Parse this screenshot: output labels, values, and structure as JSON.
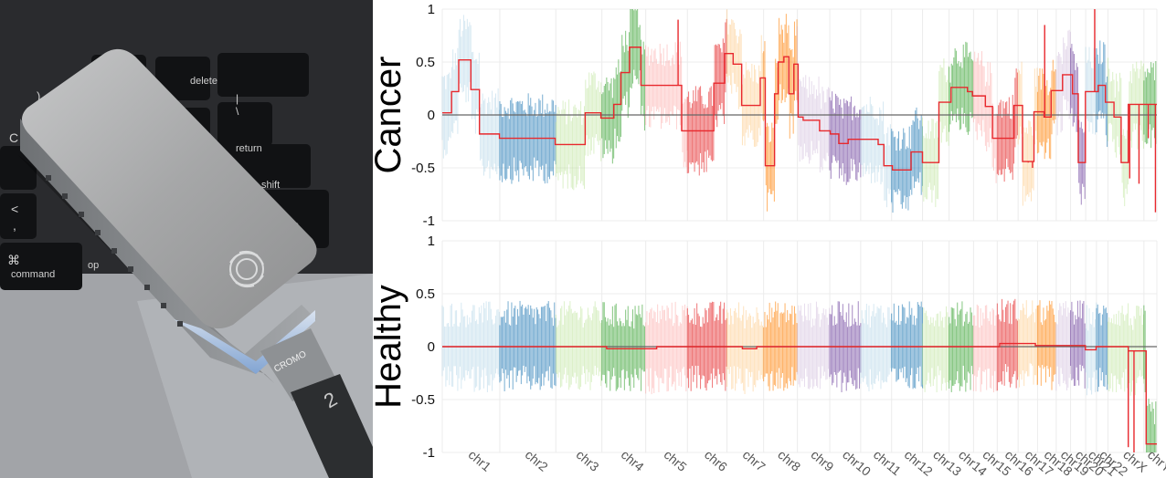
{
  "photo": {
    "keys": {
      "delete": "delete",
      "return": "return",
      "shift": "shift",
      "command": "command",
      "cmd_symbol": "⌘",
      "opt": "op",
      "plus": "+",
      "equals": "=",
      "brace_top": "}",
      "brace_bottom": "]",
      "pipe_top": "|",
      "pipe_bottom": "\\",
      "paren": ")",
      "lt": "<",
      "comma": ",",
      "arrow": "▶",
      "c_key": "C"
    },
    "cable_brand": "CROMO",
    "cable_number": "2",
    "colors": {
      "device": "#a8a9aa",
      "laptop": "#9a9ca0",
      "cable": "#2c2e30"
    }
  },
  "chart_data": [
    {
      "type": "line",
      "panel_label": "Cancer",
      "ylim": [
        -1,
        1
      ],
      "yticks": [
        -1,
        -0.5,
        0,
        0.5,
        1
      ],
      "ytick_labels": [
        "-1",
        "-0.5",
        "0",
        "0.5",
        "1"
      ],
      "categories": [
        "chr1",
        "chr2",
        "chr3",
        "chr4",
        "chr5",
        "chr6",
        "chr7",
        "chr8",
        "chr9",
        "chr10",
        "chr11",
        "chr12",
        "chr13",
        "chr14",
        "chr15",
        "chr16",
        "chr17",
        "chr18",
        "chr19",
        "chr20",
        "chr21",
        "chr22",
        "chrX",
        "chrY"
      ],
      "chromosome_fractions": [
        0.08,
        0.078,
        0.064,
        0.061,
        0.058,
        0.055,
        0.051,
        0.047,
        0.045,
        0.043,
        0.043,
        0.043,
        0.037,
        0.034,
        0.033,
        0.029,
        0.027,
        0.026,
        0.02,
        0.021,
        0.015,
        0.016,
        0.05,
        0.018
      ],
      "noise_amplitude": 0.36,
      "segments": [
        {
          "x": [
            0,
            0.013
          ],
          "y": 0.02
        },
        {
          "x": [
            0.013,
            0.023
          ],
          "y": 0.22
        },
        {
          "x": [
            0.023,
            0.04
          ],
          "y": 0.52
        },
        {
          "x": [
            0.04,
            0.052
          ],
          "y": 0.24
        },
        {
          "x": [
            0.052,
            0.08
          ],
          "y": -0.18
        },
        {
          "x": [
            0.08,
            0.158
          ],
          "y": -0.22
        },
        {
          "x": [
            0.158,
            0.2
          ],
          "y": -0.28
        },
        {
          "x": [
            0.2,
            0.222
          ],
          "y": 0.02
        },
        {
          "x": [
            0.222,
            0.24
          ],
          "y": -0.03
        },
        {
          "x": [
            0.24,
            0.25
          ],
          "y": 0.1
        },
        {
          "x": [
            0.25,
            0.262
          ],
          "y": 0.4
        },
        {
          "x": [
            0.262,
            0.278
          ],
          "y": 0.64
        },
        {
          "x": [
            0.278,
            0.335
          ],
          "y": 0.28
        },
        {
          "x": [
            0.335,
            0.38
          ],
          "y": -0.15
        },
        {
          "x": [
            0.38,
            0.395
          ],
          "y": 0.3
        },
        {
          "x": [
            0.395,
            0.407
          ],
          "y": 0.58
        },
        {
          "x": [
            0.407,
            0.419
          ],
          "y": 0.48
        },
        {
          "x": [
            0.419,
            0.445
          ],
          "y": 0.09
        },
        {
          "x": [
            0.445,
            0.452
          ],
          "y": 0.35
        },
        {
          "x": [
            0.452,
            0.465
          ],
          "y": -0.48
        },
        {
          "x": [
            0.465,
            0.47
          ],
          "y": 0.2
        },
        {
          "x": [
            0.47,
            0.478
          ],
          "y": 0.5
        },
        {
          "x": [
            0.478,
            0.485
          ],
          "y": 0.55
        },
        {
          "x": [
            0.485,
            0.492
          ],
          "y": 0.2
        },
        {
          "x": [
            0.492,
            0.498
          ],
          "y": 0.48
        },
        {
          "x": [
            0.498,
            0.505
          ],
          "y": -0.02
        },
        {
          "x": [
            0.505,
            0.528
          ],
          "y": -0.05
        },
        {
          "x": [
            0.528,
            0.543
          ],
          "y": -0.15
        },
        {
          "x": [
            0.543,
            0.555
          ],
          "y": -0.18
        },
        {
          "x": [
            0.555,
            0.568
          ],
          "y": -0.27
        },
        {
          "x": [
            0.568,
            0.61
          ],
          "y": -0.23
        },
        {
          "x": [
            0.61,
            0.618
          ],
          "y": -0.28
        },
        {
          "x": [
            0.618,
            0.63
          ],
          "y": -0.48
        },
        {
          "x": [
            0.63,
            0.656
          ],
          "y": -0.52
        },
        {
          "x": [
            0.656,
            0.672
          ],
          "y": -0.35
        },
        {
          "x": [
            0.672,
            0.695
          ],
          "y": -0.45
        },
        {
          "x": [
            0.695,
            0.712
          ],
          "y": 0.12
        },
        {
          "x": [
            0.712,
            0.735
          ],
          "y": 0.26
        },
        {
          "x": [
            0.735,
            0.742
          ],
          "y": 0.22
        },
        {
          "x": [
            0.742,
            0.76
          ],
          "y": 0.18
        },
        {
          "x": [
            0.76,
            0.77
          ],
          "y": 0.08
        },
        {
          "x": [
            0.77,
            0.8
          ],
          "y": -0.22
        },
        {
          "x": [
            0.8,
            0.812
          ],
          "y": 0.09
        },
        {
          "x": [
            0.812,
            0.828
          ],
          "y": -0.44
        },
        {
          "x": [
            0.828,
            0.842
          ],
          "y": 0.03
        },
        {
          "x": [
            0.842,
            0.852
          ],
          "y": -0.02
        },
        {
          "x": [
            0.852,
            0.868
          ],
          "y": 0.23
        },
        {
          "x": [
            0.868,
            0.882
          ],
          "y": 0.38
        },
        {
          "x": [
            0.882,
            0.89
          ],
          "y": 0.2
        },
        {
          "x": [
            0.89,
            0.9
          ],
          "y": -0.45
        },
        {
          "x": [
            0.9,
            0.918
          ],
          "y": 0.22
        },
        {
          "x": [
            0.918,
            0.928
          ],
          "y": 0.28
        },
        {
          "x": [
            0.928,
            0.94
          ],
          "y": 0.12
        },
        {
          "x": [
            0.94,
            0.95
          ],
          "y": -0.02
        },
        {
          "x": [
            0.95,
            0.96
          ],
          "y": -0.45
        },
        {
          "x": [
            0.96,
            0.978
          ],
          "y": 0.1
        },
        {
          "x": [
            0.978,
            1.0
          ],
          "y": 0.1
        }
      ],
      "spikes": [
        {
          "x": 0.33,
          "y": 0.9
        },
        {
          "x": 0.82,
          "y": -0.45
        },
        {
          "x": 0.826,
          "y": -0.5
        },
        {
          "x": 0.843,
          "y": 0.85
        },
        {
          "x": 0.913,
          "y": 1.0
        },
        {
          "x": 0.962,
          "y": -0.6
        },
        {
          "x": 0.975,
          "y": -0.65
        },
        {
          "x": 0.988,
          "y": -0.22
        },
        {
          "x": 0.998,
          "y": -0.92
        }
      ]
    },
    {
      "type": "line",
      "panel_label": "Healthy",
      "ylim": [
        -1,
        1
      ],
      "yticks": [
        -1,
        -0.5,
        0,
        0.5,
        1
      ],
      "ytick_labels": [
        "-1",
        "-0.5",
        "0",
        "0.5",
        "1"
      ],
      "categories": [
        "chr1",
        "chr2",
        "chr3",
        "chr4",
        "chr5",
        "chr6",
        "chr7",
        "chr8",
        "chr9",
        "chr10",
        "chr11",
        "chr12",
        "chr13",
        "chr14",
        "chr15",
        "chr16",
        "chr17",
        "chr18",
        "chr19",
        "chr20",
        "chr21",
        "chr22",
        "chrX",
        "chrY"
      ],
      "chromosome_fractions": [
        0.08,
        0.078,
        0.064,
        0.061,
        0.058,
        0.055,
        0.051,
        0.047,
        0.045,
        0.043,
        0.043,
        0.043,
        0.037,
        0.034,
        0.033,
        0.029,
        0.027,
        0.026,
        0.02,
        0.021,
        0.015,
        0.016,
        0.05,
        0.018
      ],
      "noise_amplitude": 0.36,
      "segments": [
        {
          "x": [
            0,
            0.23
          ],
          "y": 0.0
        },
        {
          "x": [
            0.23,
            0.3
          ],
          "y": -0.02
        },
        {
          "x": [
            0.3,
            0.42
          ],
          "y": 0.0
        },
        {
          "x": [
            0.42,
            0.44
          ],
          "y": -0.02
        },
        {
          "x": [
            0.44,
            0.78
          ],
          "y": 0.0
        },
        {
          "x": [
            0.78,
            0.83
          ],
          "y": 0.03
        },
        {
          "x": [
            0.83,
            0.9
          ],
          "y": 0.01
        },
        {
          "x": [
            0.9,
            0.915
          ],
          "y": -0.03
        },
        {
          "x": [
            0.915,
            0.96
          ],
          "y": 0.0
        },
        {
          "x": [
            0.96,
            0.985
          ],
          "y": -0.04
        },
        {
          "x": [
            0.985,
            1.0
          ],
          "y": -0.92
        }
      ],
      "spikes": [
        {
          "x": 0.96,
          "y": -0.95
        },
        {
          "x": 0.968,
          "y": -1.0
        }
      ]
    }
  ],
  "colors": {
    "series_line": "#e8282d",
    "axis": "#666666",
    "grid": "#ececec",
    "chromosome_palette": [
      "#a6cee3",
      "#1f78b4",
      "#b2df8a",
      "#33a02c",
      "#fb9a99",
      "#e31a1c",
      "#fdbf6f",
      "#ff7f00",
      "#cab2d6",
      "#6a3d9a",
      "#a6cee3",
      "#1f78b4",
      "#b2df8a",
      "#33a02c",
      "#fb9a99",
      "#e31a1c",
      "#fdbf6f",
      "#ff7f00",
      "#cab2d6",
      "#6a3d9a",
      "#a6cee3",
      "#1f78b4",
      "#b2df8a",
      "#33a02c"
    ]
  }
}
